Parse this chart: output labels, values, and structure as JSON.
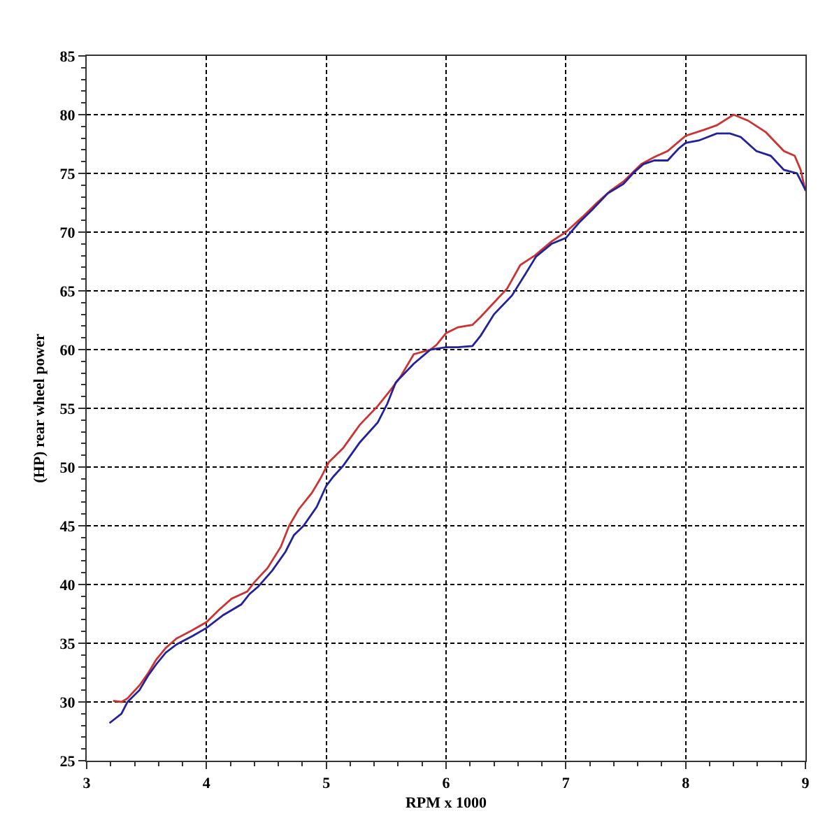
{
  "chart_data": {
    "type": "line",
    "xlabel": "RPM x 1000",
    "ylabel": "(HP) rear wheel power",
    "xlim": [
      3,
      9
    ],
    "ylim": [
      25,
      85
    ],
    "xticks": [
      3,
      4,
      5,
      6,
      7,
      8,
      9
    ],
    "yticks": [
      25,
      30,
      35,
      40,
      45,
      50,
      55,
      60,
      65,
      70,
      75,
      80,
      85
    ],
    "grid": true,
    "marker": "none",
    "line_style": "solid",
    "series": [
      {
        "color": "#cc3333",
        "x": [
          3.22,
          3.29,
          3.34,
          3.44,
          3.51,
          3.58,
          3.66,
          3.75,
          3.88,
          4.0,
          4.1,
          4.21,
          4.34,
          4.4,
          4.51,
          4.62,
          4.69,
          4.77,
          4.88,
          4.95,
          5.02,
          5.14,
          5.28,
          5.43,
          5.54,
          5.62,
          5.73,
          5.87,
          5.92,
          6.0,
          6.1,
          6.22,
          6.29,
          6.4,
          6.51,
          6.62,
          6.74,
          6.88,
          7.0,
          7.14,
          7.26,
          7.37,
          7.48,
          7.63,
          7.74,
          7.85,
          8.0,
          8.15,
          8.26,
          8.4,
          8.52,
          8.67,
          8.82,
          8.91,
          8.96,
          9.0
        ],
        "values": [
          30.1,
          30.0,
          30.3,
          31.4,
          32.4,
          33.6,
          34.6,
          35.4,
          36.1,
          36.8,
          37.8,
          38.8,
          39.4,
          40.2,
          41.4,
          43.2,
          45.0,
          46.4,
          47.8,
          49.0,
          50.4,
          51.6,
          53.6,
          55.2,
          56.6,
          57.7,
          59.6,
          60.0,
          60.4,
          61.4,
          61.9,
          62.1,
          62.8,
          64.0,
          65.2,
          67.2,
          68.0,
          69.2,
          70.0,
          71.3,
          72.5,
          73.5,
          74.3,
          75.8,
          76.4,
          76.9,
          78.2,
          78.7,
          79.1,
          80.0,
          79.5,
          78.5,
          76.9,
          76.5,
          75.3,
          73.5
        ]
      },
      {
        "color": "#22229a",
        "x": [
          3.19,
          3.29,
          3.34,
          3.44,
          3.51,
          3.58,
          3.66,
          3.75,
          3.88,
          4.0,
          4.14,
          4.29,
          4.36,
          4.43,
          4.55,
          4.66,
          4.73,
          4.81,
          4.92,
          5.0,
          5.06,
          5.14,
          5.28,
          5.43,
          5.51,
          5.58,
          5.73,
          5.87,
          6.0,
          6.1,
          6.22,
          6.29,
          6.4,
          6.55,
          6.66,
          6.75,
          6.88,
          7.0,
          7.11,
          7.22,
          7.35,
          7.48,
          7.57,
          7.65,
          7.74,
          7.85,
          7.94,
          8.0,
          8.11,
          8.26,
          8.37,
          8.46,
          8.59,
          8.71,
          8.82,
          8.93,
          9.0
        ],
        "values": [
          28.2,
          29.0,
          30.0,
          31.0,
          32.2,
          33.2,
          34.2,
          34.9,
          35.6,
          36.3,
          37.4,
          38.3,
          39.2,
          39.8,
          41.2,
          42.8,
          44.2,
          45.0,
          46.6,
          48.4,
          49.2,
          50.1,
          52.1,
          53.8,
          55.4,
          57.2,
          58.8,
          60.0,
          60.2,
          60.2,
          60.3,
          61.2,
          63.0,
          64.6,
          66.4,
          67.9,
          69.0,
          69.5,
          70.8,
          71.9,
          73.3,
          74.1,
          75.1,
          75.8,
          76.1,
          76.1,
          77.1,
          77.6,
          77.8,
          78.4,
          78.4,
          78.1,
          76.9,
          76.5,
          75.3,
          75.0,
          73.6
        ]
      }
    ]
  }
}
